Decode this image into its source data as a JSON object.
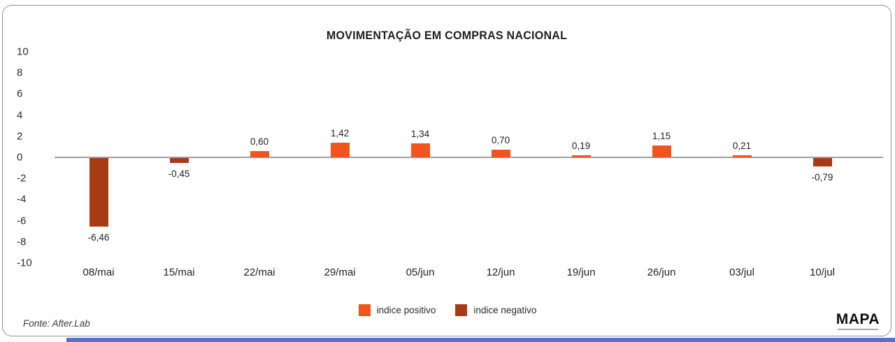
{
  "title": "MOVIMENTAÇÃO EM COMPRAS NACIONAL",
  "footer": {
    "source": "Fonte: After.Lab",
    "logo": "MAPA"
  },
  "legend": [
    {
      "label": "indice positivo",
      "color": "#f2541d"
    },
    {
      "label": "indice negativo",
      "color": "#a63b16"
    }
  ],
  "colors": {
    "positive": "#f2541d",
    "negative": "#a63b16",
    "axis_line": "#9e9e9e",
    "bottom_bar": "#5272d0"
  },
  "chart_data": {
    "type": "bar",
    "title": "MOVIMENTAÇÃO EM COMPRAS NACIONAL",
    "categories": [
      "08/mai",
      "15/mai",
      "22/mai",
      "29/mai",
      "05/jun",
      "12/jun",
      "19/jun",
      "26/jun",
      "03/jul",
      "10/jul"
    ],
    "values": [
      -6.46,
      -0.45,
      0.6,
      1.42,
      1.34,
      0.7,
      0.19,
      1.15,
      0.21,
      -0.79
    ],
    "value_labels": [
      "-6,46",
      "-0,45",
      "0,60",
      "1,42",
      "1,34",
      "0,70",
      "0,19",
      "1,15",
      "0,21",
      "-0,79"
    ],
    "yticks": [
      10,
      8,
      6,
      4,
      2,
      0,
      -2,
      -4,
      -6,
      -8,
      -10
    ],
    "ylim": [
      -10,
      10
    ],
    "xlabel": "",
    "ylabel": "",
    "grid": false,
    "legend_position": "bottom",
    "legend_entries": [
      "indice positivo",
      "indice negativo"
    ]
  }
}
